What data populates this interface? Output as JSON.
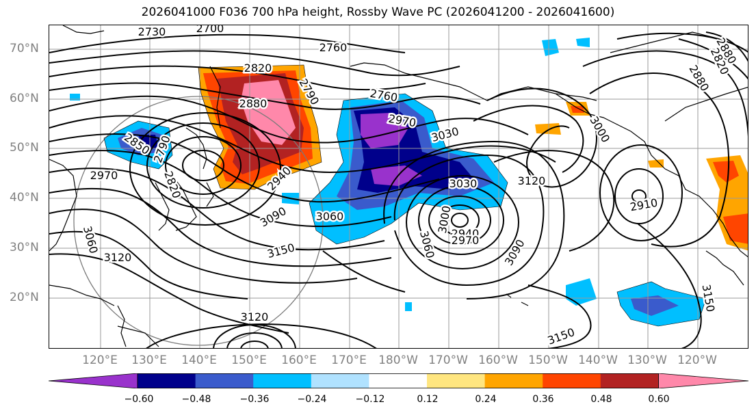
{
  "title": "2026041000 F036 700 hPa height, Rossby Wave PC (2026041200 - 2026041600)",
  "lat_labels": [
    "70°N",
    "60°N",
    "50°N",
    "40°N",
    "30°N",
    "20°N"
  ],
  "lon_labels": [
    "120°E",
    "130°E",
    "140°E",
    "150°E",
    "160°E",
    "170°E",
    "180°W",
    "170°W",
    "160°W",
    "150°W",
    "140°W",
    "130°W",
    "120°W"
  ],
  "colorbar": {
    "ticks": [
      "−0.60",
      "−0.48",
      "−0.36",
      "−0.24",
      "−0.12",
      "0.12",
      "0.24",
      "0.36",
      "0.48",
      "0.60"
    ],
    "colors": [
      "#9932cc",
      "#00008b",
      "#3a5bcc",
      "#00bfff",
      "#b0e2ff",
      "#ffffff",
      "#ffe680",
      "#ffa500",
      "#ff4500",
      "#b22222",
      "#ff88aa"
    ]
  },
  "contour_labels": [
    "2730",
    "2700",
    "2760",
    "2820",
    "2790",
    "2880",
    "2850",
    "2790",
    "2820",
    "2970",
    "2940",
    "3060",
    "3090",
    "3120",
    "3150",
    "3060",
    "3120",
    "2760",
    "2970",
    "3030",
    "3030",
    "3120",
    "3000",
    "3060",
    "2940",
    "2970",
    "3090",
    "3000",
    "2880",
    "2910",
    "2880",
    "2820",
    "3150",
    "3150"
  ]
}
